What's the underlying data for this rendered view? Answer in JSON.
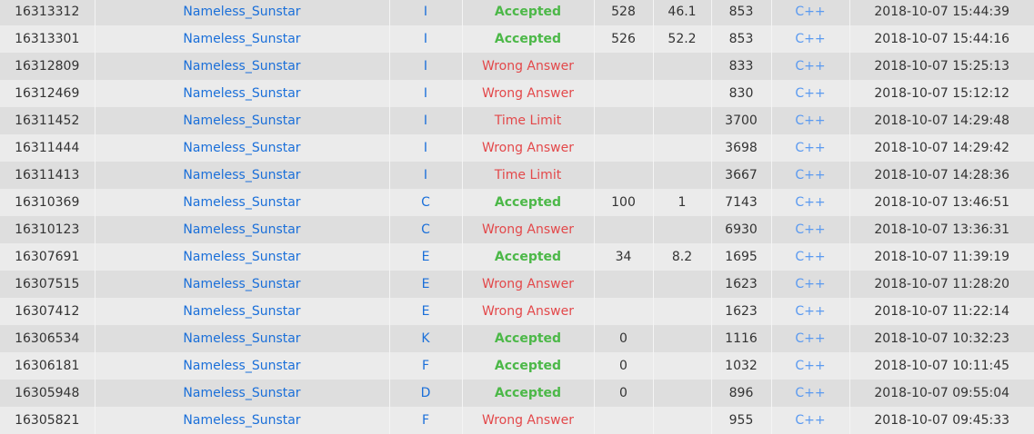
{
  "colors": {
    "accepted": "#4cb848",
    "rejected": "#e3484a",
    "link": "#1a6fd9",
    "lang": "#5b9af0"
  },
  "rows": [
    {
      "run_id": "16313312",
      "user": "Nameless_Sunstar",
      "problem": "I",
      "result": "Accepted",
      "time": "528",
      "memory": "46.1",
      "length": "853",
      "language": "C++",
      "submit_time": "2018-10-07 15:44:39"
    },
    {
      "run_id": "16313301",
      "user": "Nameless_Sunstar",
      "problem": "I",
      "result": "Accepted",
      "time": "526",
      "memory": "52.2",
      "length": "853",
      "language": "C++",
      "submit_time": "2018-10-07 15:44:16"
    },
    {
      "run_id": "16312809",
      "user": "Nameless_Sunstar",
      "problem": "I",
      "result": "Wrong Answer",
      "time": "",
      "memory": "",
      "length": "833",
      "language": "C++",
      "submit_time": "2018-10-07 15:25:13"
    },
    {
      "run_id": "16312469",
      "user": "Nameless_Sunstar",
      "problem": "I",
      "result": "Wrong Answer",
      "time": "",
      "memory": "",
      "length": "830",
      "language": "C++",
      "submit_time": "2018-10-07 15:12:12"
    },
    {
      "run_id": "16311452",
      "user": "Nameless_Sunstar",
      "problem": "I",
      "result": "Time Limit",
      "time": "",
      "memory": "",
      "length": "3700",
      "language": "C++",
      "submit_time": "2018-10-07 14:29:48"
    },
    {
      "run_id": "16311444",
      "user": "Nameless_Sunstar",
      "problem": "I",
      "result": "Wrong Answer",
      "time": "",
      "memory": "",
      "length": "3698",
      "language": "C++",
      "submit_time": "2018-10-07 14:29:42"
    },
    {
      "run_id": "16311413",
      "user": "Nameless_Sunstar",
      "problem": "I",
      "result": "Time Limit",
      "time": "",
      "memory": "",
      "length": "3667",
      "language": "C++",
      "submit_time": "2018-10-07 14:28:36"
    },
    {
      "run_id": "16310369",
      "user": "Nameless_Sunstar",
      "problem": "C",
      "result": "Accepted",
      "time": "100",
      "memory": "1",
      "length": "7143",
      "language": "C++",
      "submit_time": "2018-10-07 13:46:51"
    },
    {
      "run_id": "16310123",
      "user": "Nameless_Sunstar",
      "problem": "C",
      "result": "Wrong Answer",
      "time": "",
      "memory": "",
      "length": "6930",
      "language": "C++",
      "submit_time": "2018-10-07 13:36:31"
    },
    {
      "run_id": "16307691",
      "user": "Nameless_Sunstar",
      "problem": "E",
      "result": "Accepted",
      "time": "34",
      "memory": "8.2",
      "length": "1695",
      "language": "C++",
      "submit_time": "2018-10-07 11:39:19"
    },
    {
      "run_id": "16307515",
      "user": "Nameless_Sunstar",
      "problem": "E",
      "result": "Wrong Answer",
      "time": "",
      "memory": "",
      "length": "1623",
      "language": "C++",
      "submit_time": "2018-10-07 11:28:20"
    },
    {
      "run_id": "16307412",
      "user": "Nameless_Sunstar",
      "problem": "E",
      "result": "Wrong Answer",
      "time": "",
      "memory": "",
      "length": "1623",
      "language": "C++",
      "submit_time": "2018-10-07 11:22:14"
    },
    {
      "run_id": "16306534",
      "user": "Nameless_Sunstar",
      "problem": "K",
      "result": "Accepted",
      "time": "0",
      "memory": "",
      "length": "1116",
      "language": "C++",
      "submit_time": "2018-10-07 10:32:23"
    },
    {
      "run_id": "16306181",
      "user": "Nameless_Sunstar",
      "problem": "F",
      "result": "Accepted",
      "time": "0",
      "memory": "",
      "length": "1032",
      "language": "C++",
      "submit_time": "2018-10-07 10:11:45"
    },
    {
      "run_id": "16305948",
      "user": "Nameless_Sunstar",
      "problem": "D",
      "result": "Accepted",
      "time": "0",
      "memory": "",
      "length": "896",
      "language": "C++",
      "submit_time": "2018-10-07 09:55:04"
    },
    {
      "run_id": "16305821",
      "user": "Nameless_Sunstar",
      "problem": "F",
      "result": "Wrong Answer",
      "time": "",
      "memory": "",
      "length": "955",
      "language": "C++",
      "submit_time": "2018-10-07 09:45:33"
    }
  ]
}
